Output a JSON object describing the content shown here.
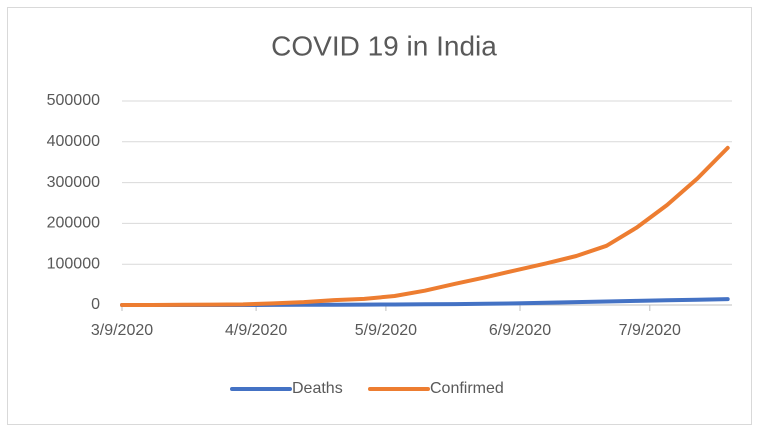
{
  "chart_data": {
    "type": "line",
    "title": "COVID 19 in India",
    "x": [
      "3/9/2020",
      "3/16/2020",
      "3/23/2020",
      "3/30/2020",
      "4/6/2020",
      "4/13/2020",
      "4/20/2020",
      "4/27/2020",
      "5/4/2020",
      "5/11/2020",
      "5/18/2020",
      "5/25/2020",
      "6/1/2020",
      "6/8/2020",
      "6/15/2020",
      "6/22/2020",
      "6/29/2020",
      "7/6/2020",
      "7/13/2020",
      "7/20/2020",
      "7/27/2020"
    ],
    "series": [
      {
        "name": "Deaths",
        "color": "#4472c4",
        "values": [
          0,
          0,
          0,
          20,
          80,
          200,
          400,
          700,
          1000,
          1300,
          1700,
          2300,
          3000,
          4000,
          5500,
          7000,
          8500,
          10000,
          11500,
          13000,
          14500
        ]
      },
      {
        "name": "Confirmed",
        "color": "#ed7d31",
        "values": [
          40,
          100,
          400,
          1100,
          1500,
          4000,
          7000,
          12000,
          15000,
          22000,
          35000,
          52000,
          68000,
          85000,
          102000,
          120000,
          145000,
          190000,
          245000,
          310000,
          385000
        ]
      }
    ],
    "xlim": [
      "3/9/2020",
      "7/28/2020"
    ],
    "xticks": [
      "3/9/2020",
      "4/9/2020",
      "5/9/2020",
      "6/9/2020",
      "7/9/2020"
    ],
    "ylim": [
      0,
      500000
    ],
    "yticks": [
      0,
      100000,
      200000,
      300000,
      400000,
      500000
    ],
    "grid": true,
    "legend": "bottom"
  }
}
